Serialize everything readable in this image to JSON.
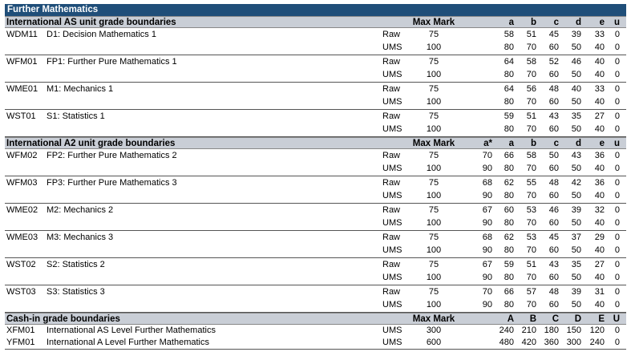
{
  "title": "Further Mathematics",
  "as_section": {
    "heading": "International AS unit grade boundaries",
    "max_label": "Max Mark",
    "grades": [
      "a",
      "b",
      "c",
      "d",
      "e",
      "u"
    ],
    "units": [
      {
        "code": "WDM11",
        "name": "D1: Decision Mathematics 1",
        "raw_label": "Raw",
        "raw_max": "75",
        "raw": [
          "58",
          "51",
          "45",
          "39",
          "33",
          "0"
        ],
        "ums_label": "UMS",
        "ums_max": "100",
        "ums": [
          "80",
          "70",
          "60",
          "50",
          "40",
          "0"
        ]
      },
      {
        "code": "WFM01",
        "name": "FP1: Further Pure Mathematics 1",
        "raw_label": "Raw",
        "raw_max": "75",
        "raw": [
          "64",
          "58",
          "52",
          "46",
          "40",
          "0"
        ],
        "ums_label": "UMS",
        "ums_max": "100",
        "ums": [
          "80",
          "70",
          "60",
          "50",
          "40",
          "0"
        ]
      },
      {
        "code": "WME01",
        "name": "M1: Mechanics 1",
        "raw_label": "Raw",
        "raw_max": "75",
        "raw": [
          "64",
          "56",
          "48",
          "40",
          "33",
          "0"
        ],
        "ums_label": "UMS",
        "ums_max": "100",
        "ums": [
          "80",
          "70",
          "60",
          "50",
          "40",
          "0"
        ]
      },
      {
        "code": "WST01",
        "name": "S1: Statistics 1",
        "raw_label": "Raw",
        "raw_max": "75",
        "raw": [
          "59",
          "51",
          "43",
          "35",
          "27",
          "0"
        ],
        "ums_label": "UMS",
        "ums_max": "100",
        "ums": [
          "80",
          "70",
          "60",
          "50",
          "40",
          "0"
        ]
      }
    ]
  },
  "a2_section": {
    "heading": "International A2 unit grade boundaries",
    "max_label": "Max Mark",
    "grades": [
      "a*",
      "a",
      "b",
      "c",
      "d",
      "e",
      "u"
    ],
    "units": [
      {
        "code": "WFM02",
        "name": "FP2: Further Pure Mathematics 2",
        "raw_label": "Raw",
        "raw_max": "75",
        "raw": [
          "70",
          "66",
          "58",
          "50",
          "43",
          "36",
          "0"
        ],
        "ums_label": "UMS",
        "ums_max": "100",
        "ums": [
          "90",
          "80",
          "70",
          "60",
          "50",
          "40",
          "0"
        ]
      },
      {
        "code": "WFM03",
        "name": "FP3: Further Pure Mathematics 3",
        "raw_label": "Raw",
        "raw_max": "75",
        "raw": [
          "68",
          "62",
          "55",
          "48",
          "42",
          "36",
          "0"
        ],
        "ums_label": "UMS",
        "ums_max": "100",
        "ums": [
          "90",
          "80",
          "70",
          "60",
          "50",
          "40",
          "0"
        ]
      },
      {
        "code": "WME02",
        "name": "M2: Mechanics 2",
        "raw_label": "Raw",
        "raw_max": "75",
        "raw": [
          "67",
          "60",
          "53",
          "46",
          "39",
          "32",
          "0"
        ],
        "ums_label": "UMS",
        "ums_max": "100",
        "ums": [
          "90",
          "80",
          "70",
          "60",
          "50",
          "40",
          "0"
        ]
      },
      {
        "code": "WME03",
        "name": "M3: Mechanics 3",
        "raw_label": "Raw",
        "raw_max": "75",
        "raw": [
          "68",
          "62",
          "53",
          "45",
          "37",
          "29",
          "0"
        ],
        "ums_label": "UMS",
        "ums_max": "100",
        "ums": [
          "90",
          "80",
          "70",
          "60",
          "50",
          "40",
          "0"
        ]
      },
      {
        "code": "WST02",
        "name": "S2: Statistics 2",
        "raw_label": "Raw",
        "raw_max": "75",
        "raw": [
          "67",
          "59",
          "51",
          "43",
          "35",
          "27",
          "0"
        ],
        "ums_label": "UMS",
        "ums_max": "100",
        "ums": [
          "90",
          "80",
          "70",
          "60",
          "50",
          "40",
          "0"
        ]
      },
      {
        "code": "WST03",
        "name": "S3: Statistics 3",
        "raw_label": "Raw",
        "raw_max": "75",
        "raw": [
          "70",
          "66",
          "57",
          "48",
          "39",
          "31",
          "0"
        ],
        "ums_label": "UMS",
        "ums_max": "100",
        "ums": [
          "90",
          "80",
          "70",
          "60",
          "50",
          "40",
          "0"
        ]
      }
    ]
  },
  "cash_section": {
    "heading": "Cash-in grade boundaries",
    "max_label": "Max Mark",
    "grades": [
      "A",
      "B",
      "C",
      "D",
      "E",
      "U"
    ],
    "rows": [
      {
        "code": "XFM01",
        "name": "International AS Level Further Mathematics",
        "label": "UMS",
        "max": "300",
        "values": [
          "240",
          "210",
          "180",
          "150",
          "120",
          "0"
        ]
      },
      {
        "code": "YFM01",
        "name": "International A Level Further Mathematics",
        "label": "UMS",
        "max": "600",
        "values": [
          "480",
          "420",
          "360",
          "300",
          "240",
          "0"
        ]
      }
    ]
  }
}
